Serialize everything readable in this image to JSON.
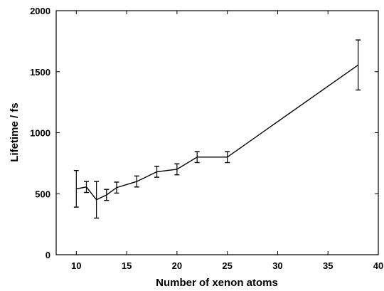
{
  "chart_data": {
    "type": "line",
    "title": "",
    "xlabel": "Number of xenon atoms",
    "ylabel": "Lifetime / fs",
    "xlim": [
      8,
      40
    ],
    "ylim": [
      0,
      2000
    ],
    "xticks": [
      10,
      15,
      20,
      25,
      30,
      35,
      40
    ],
    "yticks": [
      0,
      500,
      1000,
      1500,
      2000
    ],
    "x_tick_labels": [
      "10",
      "15",
      "20",
      "25",
      "30",
      "35",
      "40"
    ],
    "y_tick_labels": [
      "0",
      "500",
      "1000",
      "1500",
      "2000"
    ],
    "grid": false,
    "legend": "none",
    "series": [
      {
        "x": [
          10,
          11,
          12,
          13,
          14,
          16,
          18,
          20,
          22,
          25,
          38
        ],
        "y": [
          540,
          555,
          450,
          490,
          550,
          600,
          680,
          700,
          800,
          800,
          1555
        ],
        "err": [
          150,
          45,
          150,
          45,
          45,
          45,
          45,
          45,
          45,
          45,
          205
        ]
      }
    ]
  }
}
